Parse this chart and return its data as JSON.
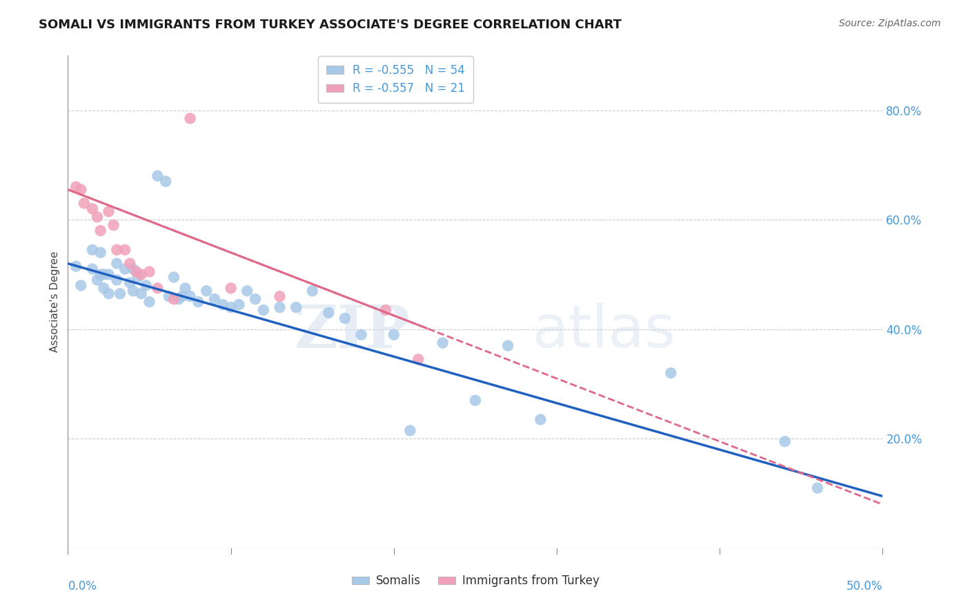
{
  "title": "SOMALI VS IMMIGRANTS FROM TURKEY ASSOCIATE'S DEGREE CORRELATION CHART",
  "source": "Source: ZipAtlas.com",
  "ylabel": "Associate's Degree",
  "ylabel_right_vals": [
    0.8,
    0.6,
    0.4,
    0.2
  ],
  "legend_r1": "R = -0.555",
  "legend_n1": "N = 54",
  "legend_r2": "R = -0.557",
  "legend_n2": "N = 21",
  "legend_label1": "Somalis",
  "legend_label2": "Immigrants from Turkey",
  "watermark_zip": "ZIP",
  "watermark_atlas": "atlas",
  "xlim": [
    0.0,
    0.5
  ],
  "ylim": [
    0.0,
    0.9
  ],
  "blue_color": "#A8C8E8",
  "pink_color": "#F0A0B8",
  "blue_line_color": "#2060C0",
  "pink_line_color": "#E06888",
  "title_color": "#1a1a1a",
  "axis_color": "#4499DD",
  "grid_color": "#CCCCCC",
  "somali_x": [
    0.005,
    0.008,
    0.015,
    0.015,
    0.018,
    0.02,
    0.02,
    0.022,
    0.022,
    0.025,
    0.025,
    0.03,
    0.03,
    0.032,
    0.035,
    0.038,
    0.04,
    0.04,
    0.043,
    0.045,
    0.048,
    0.05,
    0.055,
    0.06,
    0.062,
    0.065,
    0.068,
    0.07,
    0.072,
    0.075,
    0.08,
    0.085,
    0.09,
    0.095,
    0.1,
    0.105,
    0.11,
    0.115,
    0.12,
    0.13,
    0.14,
    0.15,
    0.16,
    0.17,
    0.18,
    0.2,
    0.21,
    0.23,
    0.25,
    0.27,
    0.29,
    0.37,
    0.44,
    0.46
  ],
  "somali_y": [
    0.515,
    0.48,
    0.545,
    0.51,
    0.49,
    0.54,
    0.5,
    0.5,
    0.475,
    0.5,
    0.465,
    0.52,
    0.49,
    0.465,
    0.51,
    0.485,
    0.51,
    0.47,
    0.495,
    0.465,
    0.48,
    0.45,
    0.68,
    0.67,
    0.46,
    0.495,
    0.455,
    0.46,
    0.475,
    0.46,
    0.45,
    0.47,
    0.455,
    0.445,
    0.44,
    0.445,
    0.47,
    0.455,
    0.435,
    0.44,
    0.44,
    0.47,
    0.43,
    0.42,
    0.39,
    0.39,
    0.215,
    0.375,
    0.27,
    0.37,
    0.235,
    0.32,
    0.195,
    0.11
  ],
  "turkey_x": [
    0.005,
    0.008,
    0.01,
    0.015,
    0.018,
    0.02,
    0.025,
    0.028,
    0.03,
    0.035,
    0.038,
    0.042,
    0.045,
    0.05,
    0.055,
    0.065,
    0.075,
    0.1,
    0.13,
    0.195,
    0.215
  ],
  "turkey_y": [
    0.66,
    0.655,
    0.63,
    0.62,
    0.605,
    0.58,
    0.615,
    0.59,
    0.545,
    0.545,
    0.52,
    0.505,
    0.5,
    0.505,
    0.475,
    0.455,
    0.785,
    0.475,
    0.46,
    0.435,
    0.345
  ],
  "blue_trend_x0": 0.0,
  "blue_trend_y0": 0.52,
  "blue_trend_x1": 0.5,
  "blue_trend_y1": 0.095,
  "pink_trend_x0": 0.0,
  "pink_trend_y0": 0.655,
  "pink_trend_x1": 0.5,
  "pink_trend_y1": 0.08
}
